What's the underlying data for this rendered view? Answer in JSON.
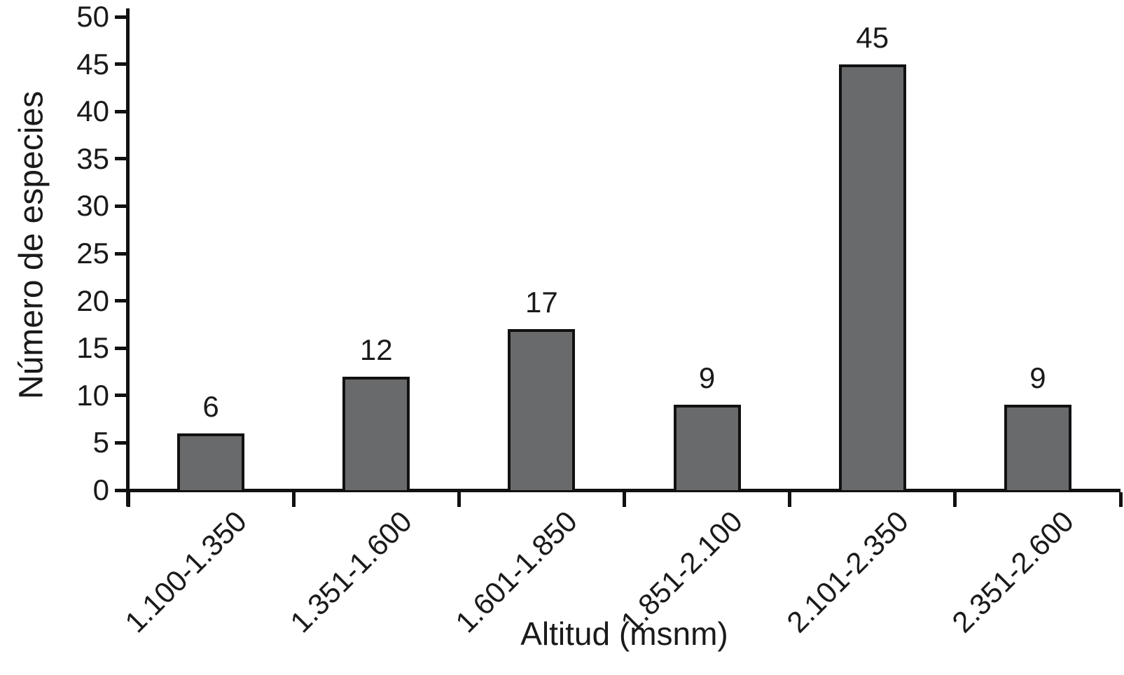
{
  "chart_data": {
    "type": "bar",
    "title": "",
    "xlabel": "Altitud (msnm)",
    "ylabel": "Número de especies",
    "categories": [
      "1.100-1.350",
      "1.351-1.600",
      "1.601-1.850",
      "1.851-2.100",
      "2.101-2.350",
      "2.351-2.600"
    ],
    "values": [
      6,
      12,
      17,
      9,
      45,
      9
    ],
    "bar_value_labels": [
      "6",
      "12",
      "17",
      "9",
      "45",
      "9"
    ],
    "ylim": [
      0,
      50
    ],
    "yticks": [
      0,
      5,
      10,
      15,
      20,
      25,
      30,
      35,
      40,
      45,
      50
    ],
    "grid": false,
    "legend": "none",
    "x_label_rotation_deg": -45,
    "colors": {
      "bar_fill": "#696a6c",
      "bar_border": "#111111",
      "axis": "#111111",
      "text": "#1a1a1a",
      "background": "#ffffff"
    }
  }
}
